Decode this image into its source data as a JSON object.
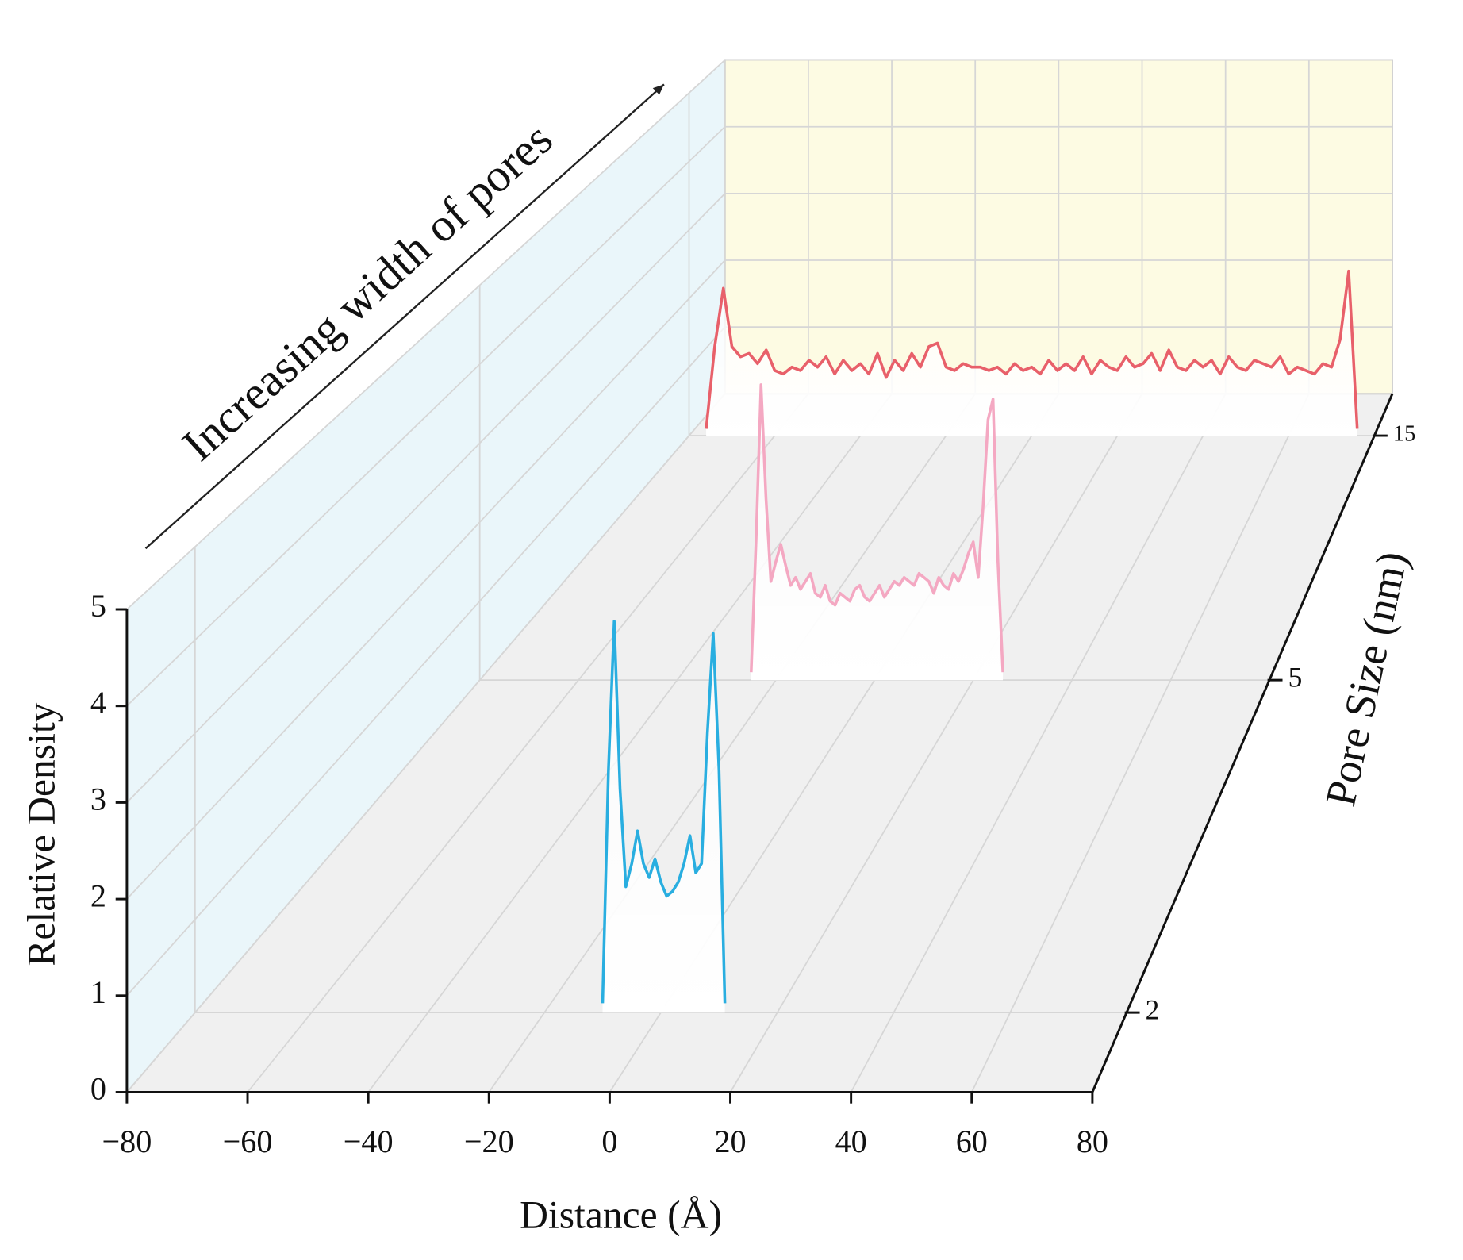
{
  "chart_data": {
    "type": "waterfall3d",
    "annotation": "Increasing width of pores",
    "xlabel": "Distance (Å)",
    "ylabel": "Relative Density",
    "zlabel": "Pore Size (nm)",
    "xlim": [
      -80,
      80
    ],
    "xticks": [
      {
        "value": -80,
        "label": "−80"
      },
      {
        "value": -60,
        "label": "−60"
      },
      {
        "value": -40,
        "label": "−40"
      },
      {
        "value": -20,
        "label": "−20"
      },
      0,
      20,
      40,
      60,
      80
    ],
    "ylim": [
      0,
      5
    ],
    "yticks": [
      0,
      1,
      2,
      3,
      4,
      5
    ],
    "zticks": [
      2,
      5,
      15
    ],
    "grid": true,
    "series": [
      {
        "color": "#29aee0",
        "x": [
          -10,
          -9,
          -8,
          -7,
          -6,
          -5,
          -4,
          -3,
          -2,
          -1,
          0,
          1,
          2,
          3,
          4,
          5,
          6,
          7,
          8,
          9,
          10,
          11
        ],
        "values": [
          0.1,
          2.6,
          4.2,
          2.4,
          1.35,
          1.6,
          1.95,
          1.6,
          1.45,
          1.65,
          1.4,
          1.25,
          1.3,
          1.4,
          1.6,
          1.9,
          1.5,
          1.6,
          3.0,
          4.07,
          2.6,
          0.1
        ]
      },
      {
        "color": "#f4a8c2",
        "x": [
          -25,
          -24,
          -23,
          -22,
          -21,
          -20,
          -19,
          -18,
          -17,
          -16,
          -15,
          -14,
          -13,
          -12,
          -11,
          -10,
          -9,
          -8,
          -7,
          -6,
          -5,
          -4,
          -3,
          -2,
          -1,
          0,
          1,
          2,
          3,
          4,
          5,
          6,
          7,
          8,
          9,
          10,
          11,
          12,
          13,
          14,
          15,
          16,
          17,
          18,
          19,
          20,
          21,
          22,
          23,
          24,
          25,
          26
        ],
        "values": [
          0.1,
          1.8,
          3.74,
          2.3,
          1.25,
          1.5,
          1.72,
          1.45,
          1.2,
          1.3,
          1.15,
          1.25,
          1.35,
          1.1,
          1.05,
          1.2,
          1.0,
          0.95,
          1.1,
          1.05,
          1.0,
          1.15,
          1.2,
          1.05,
          1.0,
          1.1,
          1.2,
          1.05,
          1.15,
          1.25,
          1.2,
          1.3,
          1.25,
          1.2,
          1.35,
          1.3,
          1.25,
          1.1,
          1.3,
          1.2,
          1.15,
          1.35,
          1.25,
          1.4,
          1.6,
          1.75,
          1.3,
          2.2,
          3.3,
          3.56,
          1.5,
          0.1
        ]
      },
      {
        "color": "#e8606a",
        "x": [
          -76,
          -74,
          -72,
          -70,
          -68,
          -66,
          -64,
          -62,
          -60,
          -58,
          -56,
          -54,
          -52,
          -50,
          -48,
          -46,
          -44,
          -42,
          -40,
          -38,
          -36,
          -34,
          -32,
          -30,
          -28,
          -26,
          -24,
          -22,
          -20,
          -18,
          -16,
          -14,
          -12,
          -10,
          -8,
          -6,
          -4,
          -2,
          0,
          2,
          4,
          6,
          8,
          10,
          12,
          14,
          16,
          18,
          20,
          22,
          24,
          26,
          28,
          30,
          32,
          34,
          36,
          38,
          40,
          42,
          44,
          46,
          48,
          50,
          52,
          54,
          56,
          58,
          60,
          62,
          64,
          66,
          68,
          70,
          72,
          74,
          76
        ],
        "values": [
          0.1,
          1.3,
          2.15,
          1.3,
          1.15,
          1.2,
          1.05,
          1.25,
          0.95,
          0.9,
          1.0,
          0.95,
          1.1,
          1.0,
          1.15,
          0.9,
          1.1,
          0.95,
          1.05,
          0.9,
          1.2,
          0.85,
          1.1,
          0.95,
          1.2,
          1.0,
          1.3,
          1.35,
          1.0,
          0.95,
          1.05,
          1.0,
          1.0,
          0.95,
          1.0,
          0.9,
          1.05,
          0.95,
          1.0,
          0.9,
          1.1,
          0.95,
          1.05,
          0.95,
          1.15,
          0.9,
          1.1,
          1.0,
          0.95,
          1.15,
          1.0,
          1.05,
          1.2,
          0.95,
          1.25,
          1.0,
          0.95,
          1.1,
          1.0,
          1.1,
          0.9,
          1.15,
          1.0,
          0.95,
          1.1,
          1.05,
          1.0,
          1.15,
          0.9,
          1.0,
          0.95,
          0.9,
          1.05,
          1.0,
          1.4,
          2.4,
          0.1
        ]
      }
    ]
  }
}
